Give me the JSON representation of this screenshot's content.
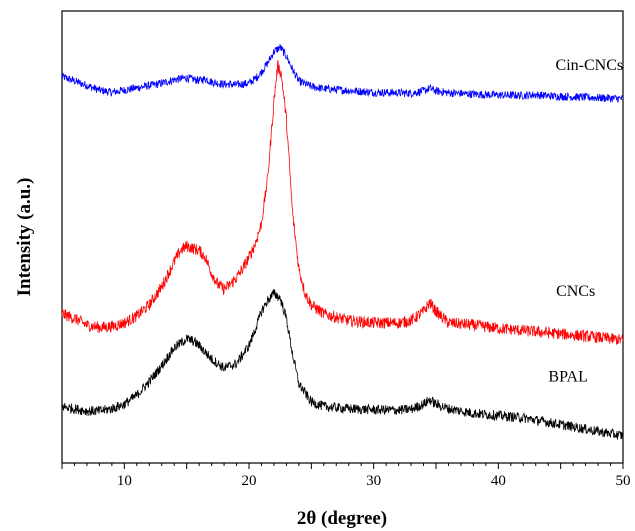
{
  "chart_data": {
    "type": "line",
    "title": "",
    "xlabel": "2θ (degree)",
    "ylabel": "Intensity (a.u.)",
    "xlim": [
      5,
      50
    ],
    "ylim": [
      0,
      100
    ],
    "x_ticks": [
      10,
      20,
      30,
      40,
      50
    ],
    "y_ticks_shown": false,
    "grid": false,
    "legend": "none (inline series labels at right)",
    "series": [
      {
        "name": "Cin-CNCs",
        "color": "#0000ff",
        "noise": 0.9,
        "x": [
          5,
          6,
          7,
          8,
          9,
          10,
          11,
          12,
          13,
          14,
          15,
          16,
          16.5,
          17,
          18,
          19,
          20,
          20.5,
          21,
          21.5,
          22,
          22.5,
          23,
          23.5,
          24,
          25,
          26,
          28,
          30,
          32,
          33,
          34,
          34.5,
          35,
          36,
          38,
          40,
          42,
          43,
          44,
          46,
          48,
          50
        ],
        "y": [
          85.5,
          84.5,
          83.5,
          82.5,
          82.0,
          82.5,
          83.0,
          83.5,
          84.0,
          84.8,
          85.2,
          84.6,
          85.0,
          84.3,
          83.8,
          83.7,
          84.0,
          85.0,
          86.5,
          88.5,
          91.0,
          92.0,
          90.0,
          87.0,
          84.5,
          83.3,
          82.8,
          82.4,
          82.0,
          81.9,
          81.8,
          82.3,
          82.9,
          82.3,
          81.9,
          81.6,
          81.4,
          81.3,
          81.5,
          81.2,
          81.0,
          80.8,
          80.6
        ]
      },
      {
        "name": "CNCs",
        "color": "#ff0000",
        "noise": 1.3,
        "x": [
          5,
          6,
          7,
          8,
          9,
          10,
          11,
          12,
          13,
          14,
          14.5,
          15,
          15.5,
          16,
          16.5,
          17,
          17.5,
          18,
          18.5,
          19,
          19.5,
          20,
          20.5,
          21,
          21.5,
          22,
          22.3,
          22.6,
          23,
          23.5,
          24,
          24.5,
          25,
          26,
          28,
          30,
          32,
          33,
          34,
          34.5,
          35,
          36,
          38,
          40,
          42,
          44,
          46,
          48,
          50
        ],
        "y": [
          33.0,
          32.0,
          30.5,
          30.0,
          30.2,
          31.0,
          32.5,
          35.0,
          39.0,
          44.5,
          47.0,
          48.0,
          47.5,
          47.0,
          45.5,
          42.0,
          39.5,
          38.5,
          39.5,
          41.0,
          43.0,
          45.5,
          48.5,
          53.0,
          63.0,
          80.0,
          88.0,
          86.0,
          76.0,
          55.0,
          43.0,
          37.5,
          35.0,
          33.0,
          31.5,
          31.0,
          31.0,
          31.5,
          33.5,
          35.5,
          33.5,
          31.0,
          30.5,
          29.8,
          29.3,
          28.8,
          28.3,
          27.8,
          27.2
        ]
      },
      {
        "name": "BPAL",
        "color": "#000000",
        "noise": 1.1,
        "x": [
          5,
          6,
          7,
          8,
          9,
          10,
          11,
          12,
          13,
          14,
          15,
          15.5,
          16,
          16.5,
          17,
          18,
          19,
          20,
          20.5,
          21,
          21.5,
          22,
          22.5,
          23,
          23.5,
          24,
          25,
          26,
          28,
          30,
          32,
          33,
          34,
          34.5,
          35,
          36,
          38,
          40,
          42,
          44,
          46,
          48,
          50
        ],
        "y": [
          12.5,
          12.0,
          11.5,
          11.5,
          12.0,
          13.0,
          15.0,
          18.0,
          21.5,
          25.5,
          27.5,
          27.0,
          26.0,
          24.5,
          23.0,
          21.0,
          22.0,
          26.0,
          29.5,
          33.5,
          36.0,
          37.5,
          36.5,
          32.0,
          24.0,
          17.5,
          13.5,
          12.5,
          12.0,
          11.8,
          11.7,
          11.9,
          13.0,
          14.0,
          13.0,
          12.0,
          11.0,
          10.5,
          10.0,
          9.0,
          8.0,
          7.0,
          6.0
        ]
      }
    ],
    "annotations": [
      {
        "text": "Cin-CNCs",
        "x": 47.3,
        "y": 87
      },
      {
        "text": "CNCs",
        "x": 46.2,
        "y": 37
      },
      {
        "text": "BPAL",
        "x": 45.6,
        "y": 18
      }
    ]
  }
}
